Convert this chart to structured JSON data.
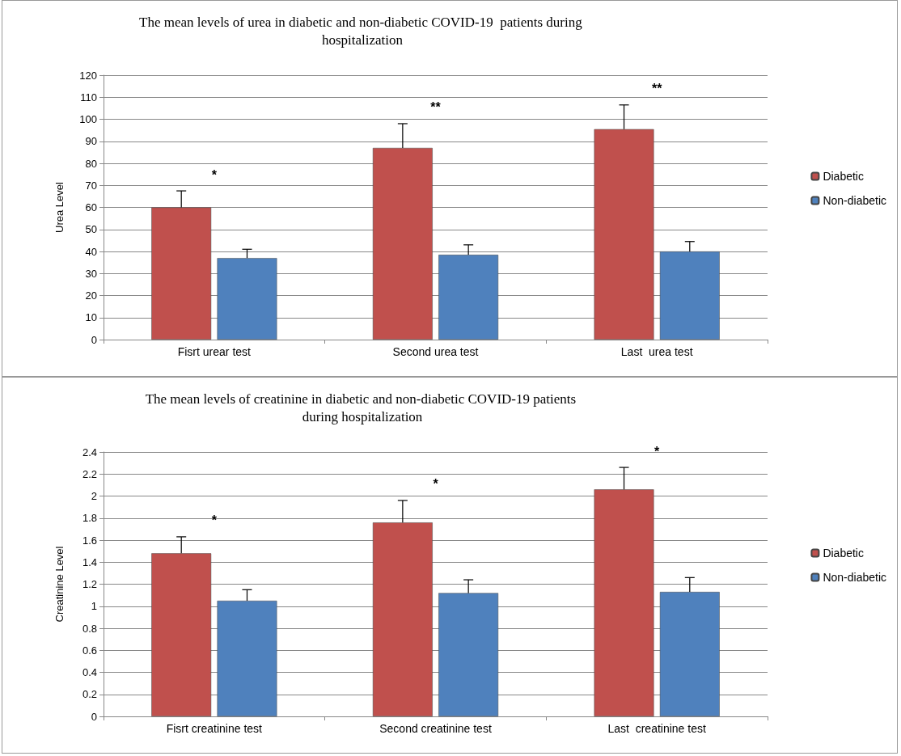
{
  "chart_data": [
    {
      "type": "bar",
      "title": "The mean levels of urea in diabetic and non-diabetic COVID-19  patients during hospitalization",
      "ylabel": "Urea Level",
      "categories": [
        "Fisrt urear test",
        "Second urea test",
        "Last  urea test"
      ],
      "series": [
        {
          "name": "Diabetic",
          "color": "#c0504d",
          "values": [
            60,
            87,
            95.5
          ],
          "errors": [
            [
              60,
              67.5
            ],
            [
              87,
              98
            ],
            [
              95.5,
              106.5
            ]
          ]
        },
        {
          "name": "Non-diabetic",
          "color": "#4f81bd",
          "values": [
            37,
            38.5,
            40
          ],
          "errors": [
            [
              37,
              41
            ],
            [
              38.5,
              43
            ],
            [
              40,
              44.5
            ]
          ]
        }
      ],
      "annotations": [
        "*",
        "**",
        "**"
      ],
      "ylim": [
        0,
        120
      ],
      "yticks": [
        0,
        10,
        20,
        30,
        40,
        50,
        60,
        70,
        80,
        90,
        100,
        110,
        120
      ],
      "grid": "y",
      "legend": "right"
    },
    {
      "type": "bar",
      "title": "The mean levels of creatinine in diabetic and non-diabetic COVID-19 patients during hospitalization",
      "ylabel": "Creatinine Level",
      "categories": [
        "Fisrt creatinine test",
        "Second creatinine test",
        "Last  creatinine test"
      ],
      "series": [
        {
          "name": "Diabetic",
          "color": "#c0504d",
          "values": [
            1.48,
            1.76,
            2.06
          ],
          "errors": [
            [
              1.48,
              1.63
            ],
            [
              1.76,
              1.96
            ],
            [
              2.06,
              2.26
            ]
          ]
        },
        {
          "name": "Non-diabetic",
          "color": "#4f81bd",
          "values": [
            1.05,
            1.12,
            1.13
          ],
          "errors": [
            [
              1.05,
              1.15
            ],
            [
              1.12,
              1.24
            ],
            [
              1.13,
              1.26
            ]
          ]
        }
      ],
      "annotations": [
        "*",
        "*",
        "*"
      ],
      "ylim": [
        0,
        2.4
      ],
      "yticks": [
        0,
        0.2,
        0.4,
        0.6,
        0.8,
        1,
        1.2,
        1.4,
        1.6,
        1.8,
        2,
        2.2,
        2.4
      ],
      "grid": "y",
      "legend": "right"
    }
  ]
}
